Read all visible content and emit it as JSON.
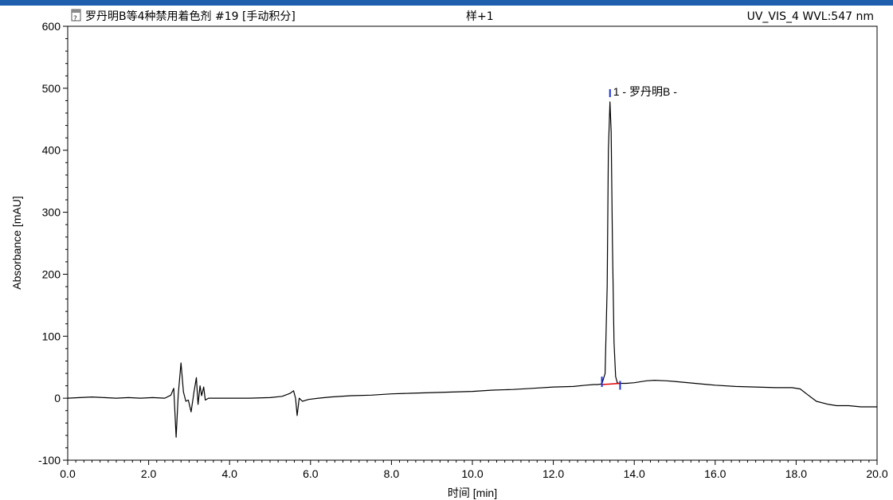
{
  "header": {
    "title": "罗丹明B等4种禁用着色剂 #19 [手动积分]",
    "sample": "样+1",
    "channel": "UV_VIS_4 WVL:547 nm",
    "icon": "document-icon"
  },
  "colors": {
    "topbar": "#1f5fae",
    "trace": "#000000",
    "baseline": "#e00000",
    "marker": "#1a2fd6"
  },
  "chart_data": {
    "type": "line",
    "title": "罗丹明B等4种禁用着色剂 #19 [手动积分]",
    "xlabel": "时间 [min]",
    "ylabel": "Absorbance [mAU]",
    "xlim": [
      0,
      20
    ],
    "ylim": [
      -100,
      600
    ],
    "x_ticks": [
      "0.0",
      "2.0",
      "4.0",
      "6.0",
      "8.0",
      "10.0",
      "12.0",
      "14.0",
      "16.0",
      "18.0",
      "20.0"
    ],
    "y_ticks": [
      "-100",
      "0",
      "100",
      "200",
      "300",
      "400",
      "500",
      "600"
    ],
    "grid": false,
    "series": [
      {
        "x": [
          0,
          0.3,
          0.6,
          0.9,
          1.2,
          1.5,
          1.8,
          2.1,
          2.4,
          2.55,
          2.62,
          2.68,
          2.73,
          2.8,
          2.86,
          2.92,
          2.98,
          3.05,
          3.12,
          3.18,
          3.22,
          3.27,
          3.31,
          3.36,
          3.4,
          3.48,
          3.6,
          4.0,
          4.5,
          5.0,
          5.3,
          5.5,
          5.58,
          5.63,
          5.67,
          5.72,
          5.8,
          5.95,
          6.2,
          6.5,
          7.0,
          7.5,
          8.0,
          8.5,
          9.0,
          9.5,
          10.0,
          10.5,
          11.0,
          11.5,
          12.0,
          12.5,
          12.8,
          13.0,
          13.1,
          13.2,
          13.28,
          13.33,
          13.36,
          13.4,
          13.43,
          13.46,
          13.5,
          13.54,
          13.58,
          13.62,
          13.7,
          13.8,
          14.0,
          14.3,
          14.5,
          14.8,
          15.0,
          15.5,
          16.0,
          16.5,
          17.0,
          17.5,
          17.9,
          18.1,
          18.3,
          18.5,
          18.8,
          19.0,
          19.3,
          19.6,
          20.0
        ],
        "y": [
          0,
          1,
          2,
          1,
          0,
          1,
          0,
          1,
          0,
          5,
          16,
          -63,
          5,
          57,
          10,
          -5,
          -3,
          -22,
          10,
          33,
          -10,
          20,
          4,
          18,
          -3,
          0,
          0,
          0,
          0,
          1,
          3,
          8,
          12,
          0,
          -28,
          0,
          -5,
          -2,
          0,
          2,
          4,
          5,
          7,
          8,
          9,
          10,
          11,
          13,
          14,
          16,
          18,
          19,
          21,
          22,
          22,
          23,
          40,
          180,
          400,
          478,
          430,
          250,
          90,
          35,
          25,
          24,
          24,
          24,
          25,
          28,
          29,
          28,
          27,
          24,
          21,
          19,
          18,
          17,
          17,
          15,
          5,
          -5,
          -10,
          -12,
          -12,
          -14,
          -14
        ]
      }
    ],
    "peak_annotation": {
      "label": "1 - 罗丹明B -",
      "rt": 13.42,
      "height": 478,
      "start": 13.2,
      "end": 13.65,
      "baseline_start": 22,
      "baseline_end": 24
    }
  }
}
